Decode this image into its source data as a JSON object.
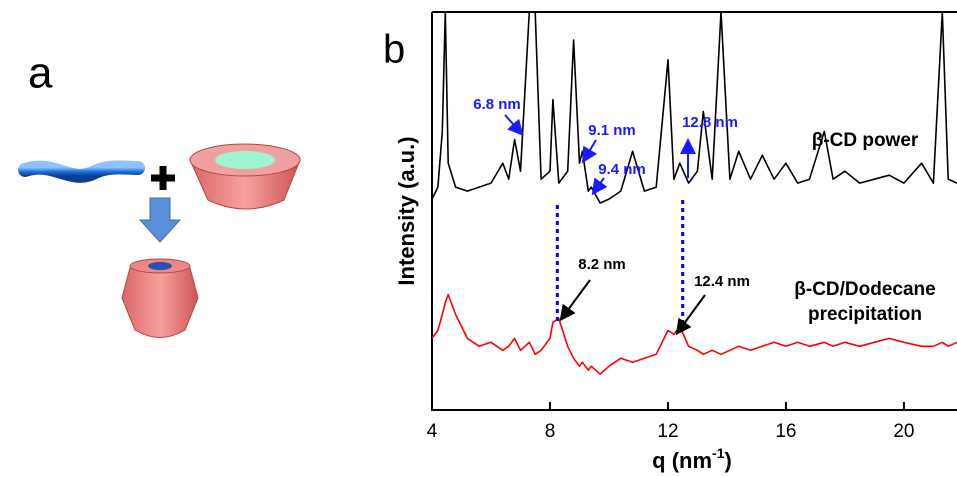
{
  "panel_labels": [
    "a",
    "b"
  ],
  "chart_data": {
    "type": "line",
    "ylabel": "Intensity (a.u.)",
    "xlabel": {
      "text": "q (nm",
      "sup": "-1",
      "end": ")"
    },
    "x": [
      4.0,
      4.2,
      4.35,
      4.45,
      4.55,
      4.8,
      5.2,
      5.6,
      6.0,
      6.4,
      6.6,
      6.8,
      7.0,
      7.3,
      7.5,
      7.7,
      8.0,
      8.1,
      8.3,
      8.6,
      8.8,
      9.0,
      9.1,
      9.3,
      9.4,
      9.7,
      10.0,
      10.4,
      10.8,
      11.2,
      11.6,
      12.0,
      12.2,
      12.4,
      12.7,
      13.0,
      13.2,
      13.5,
      13.8,
      14.1,
      14.4,
      14.8,
      15.2,
      15.6,
      16.0,
      16.4,
      16.8,
      17.3,
      17.6,
      18.0,
      18.5,
      19.0,
      19.5,
      20.0,
      20.6,
      21.0,
      21.3,
      21.5,
      21.8
    ],
    "series": [
      {
        "name": "β-CD power",
        "color": "#000000",
        "values": [
          53,
          56,
          70,
          100,
          62,
          56,
          55,
          56,
          57,
          62,
          58,
          68,
          60,
          100,
          100,
          58,
          60,
          78,
          57,
          60,
          93,
          62,
          65,
          55,
          56,
          52,
          53,
          55,
          65,
          55,
          56,
          88,
          58,
          62,
          57,
          60,
          75,
          58,
          100,
          58,
          65,
          58,
          64,
          58,
          62,
          57,
          58,
          70,
          58,
          60,
          57,
          58,
          59,
          57,
          62,
          57,
          100,
          58,
          57
        ]
      },
      {
        "name": "β-CD/Dodecane precipitation",
        "color": "#ff0000",
        "values": [
          18,
          20,
          24,
          27,
          29,
          24,
          18,
          16,
          17,
          15,
          16,
          18,
          15,
          17,
          14,
          15,
          18,
          22,
          23,
          16,
          13,
          11,
          12,
          10,
          11,
          9,
          11,
          13,
          12,
          13,
          14,
          20,
          19,
          21,
          16,
          15,
          14,
          15,
          14,
          15,
          16,
          15,
          16,
          17,
          16,
          17,
          16,
          17,
          16,
          17,
          16,
          17,
          18,
          17,
          16,
          16,
          17,
          16,
          17
        ]
      }
    ],
    "xlim": [
      4,
      21.8
    ],
    "ylim": [
      0,
      100
    ],
    "xticks": [
      4,
      8,
      12,
      16,
      20
    ],
    "vlines": [
      8.25,
      12.5
    ],
    "vline_color": "#0000ff",
    "annotations": [
      {
        "text": "6.8 nm",
        "color": "#1a1aff"
      },
      {
        "text": "9.1 nm",
        "color": "#1a1aff"
      },
      {
        "text": "9.4 nm",
        "color": "#1a1aff"
      },
      {
        "text": "12.8 nm",
        "color": "#1a1aff"
      },
      {
        "text": "8.2 nm",
        "color": "#000000"
      },
      {
        "text": "12.4 nm",
        "color": "#000000"
      }
    ]
  }
}
